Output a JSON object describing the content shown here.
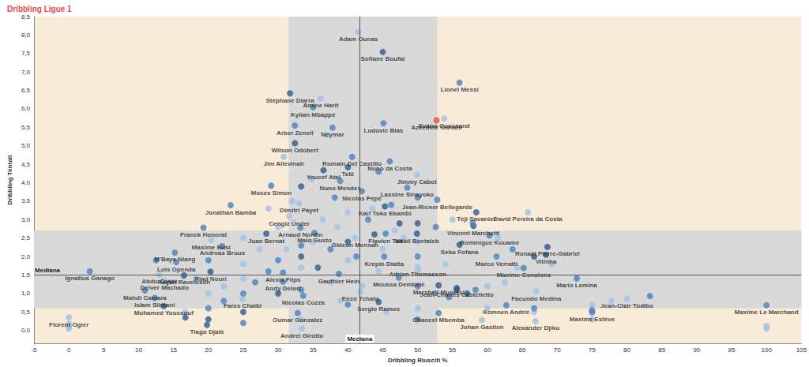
{
  "chart_data": {
    "type": "scatter",
    "title": "Dribbling Ligue 1",
    "x_label": "Dribbling Riusciti %",
    "y_label": "Dribbling Tentati",
    "xlim": [
      -5,
      105
    ],
    "xticks": [
      -5,
      0,
      5,
      10,
      15,
      20,
      25,
      30,
      35,
      40,
      45,
      50,
      55,
      60,
      65,
      70,
      75,
      80,
      85,
      90,
      95,
      100,
      105
    ],
    "ylim": [
      -0.35,
      8.5
    ],
    "yticks": [
      {
        "value": 0,
        "label": "0,0"
      },
      {
        "value": 0.5,
        "label": "0,5"
      },
      {
        "value": 1,
        "label": "1,0"
      },
      {
        "value": 1.5,
        "label": "1,5"
      },
      {
        "value": 2,
        "label": "2,0"
      },
      {
        "value": 2.5,
        "label": "2,5"
      },
      {
        "value": 3,
        "label": "3,0"
      },
      {
        "value": 3.5,
        "label": "3,5"
      },
      {
        "value": 4,
        "label": "4,0"
      },
      {
        "value": 4.5,
        "label": "4,5"
      },
      {
        "value": 5,
        "label": "5,0"
      },
      {
        "value": 5.5,
        "label": "5,5"
      },
      {
        "value": 6,
        "label": "6,0"
      },
      {
        "value": 6.5,
        "label": "6,5"
      },
      {
        "value": 7,
        "label": "7,0"
      },
      {
        "value": 7.5,
        "label": "7,5"
      },
      {
        "value": 8,
        "label": "8,0"
      },
      {
        "value": 8.5,
        "label": "8,5"
      }
    ],
    "grid": false,
    "median_label": "Mediana",
    "median_x": 41.7,
    "median_y": 1.5,
    "x_band": [
      31.5,
      52.8
    ],
    "y_band": [
      0.6,
      2.7
    ],
    "points": [
      {
        "x": 41.5,
        "y": 8.08,
        "label": "Adam Ounas",
        "color": "#9fc2e4"
      },
      {
        "x": 45,
        "y": 7.54,
        "label": "Sofiane Boufal",
        "color": "#2e5b88"
      },
      {
        "x": 56,
        "y": 6.71,
        "label": "Lionel Messi",
        "color": "#4a82bd"
      },
      {
        "x": 31.7,
        "y": 6.42,
        "label": "Stéphane Diarra",
        "color": "#2e5b88"
      },
      {
        "x": 36.1,
        "y": 6.28,
        "label": "Amine Harit",
        "color": "#9fc2e4"
      },
      {
        "x": 53.8,
        "y": 5.74,
        "label": "Evann Guessand",
        "color": "#9fc2e4"
      },
      {
        "x": 52.7,
        "y": 5.69,
        "label": "Azzedine Ounahi",
        "color": "#e8484d"
      },
      {
        "x": 35,
        "y": 6.04,
        "label": "Kylian Mbappé",
        "color": "#4a82bd"
      },
      {
        "x": 45.1,
        "y": 5.61,
        "label": "Ludovic Blas",
        "color": "#4a82bd"
      },
      {
        "x": 32.4,
        "y": 5.55,
        "label": "Arber Zeneli",
        "color": "#4a82bd"
      },
      {
        "x": 37.8,
        "y": 5.49,
        "label": "Neymar",
        "color": "#4a82bd"
      },
      {
        "x": 32.4,
        "y": 5.07,
        "label": "Wilson Odobert",
        "color": "#2e5b88"
      },
      {
        "x": 40.6,
        "y": 4.7,
        "label": "Romain Del Castillo",
        "color": "#4a82bd"
      },
      {
        "x": 46,
        "y": 4.58,
        "label": "Nuno da Costa",
        "color": "#4a82bd"
      },
      {
        "x": 30.8,
        "y": 4.7,
        "label": "Jim Allevinah",
        "color": "#9fc2e4"
      },
      {
        "x": 36.5,
        "y": 4.34,
        "label": "Youcef Atal",
        "color": "#2e5b88"
      },
      {
        "x": 40,
        "y": 4.42,
        "label": "Tetê",
        "color": "#2e5b88"
      },
      {
        "x": 38.9,
        "y": 4.05,
        "label": "Nuno Mendes",
        "color": "#4a82bd"
      },
      {
        "x": 42,
        "y": 3.77,
        "label": "Nicolas Pépé",
        "color": "#4a82bd"
      },
      {
        "x": 49.9,
        "y": 4.22,
        "label": "Jimmy Cabot",
        "color": "#9fc2e4"
      },
      {
        "x": 48.5,
        "y": 3.87,
        "label": "Lassine Sinayoko",
        "color": "#4a82bd"
      },
      {
        "x": 29,
        "y": 3.92,
        "label": "Moses Simon",
        "color": "#4a82bd"
      },
      {
        "x": 45.3,
        "y": 3.36,
        "label": "Karl Toko Ekambi",
        "color": "#2e5b88"
      },
      {
        "x": 52.8,
        "y": 3.54,
        "label": "Jean-Ricner Bellegarde",
        "color": "#4a82bd"
      },
      {
        "x": 58.4,
        "y": 3.2,
        "label": "Téji Savanier",
        "color": "#2e5b88"
      },
      {
        "x": 65.8,
        "y": 3.2,
        "label": "David Pereira da Costa",
        "color": "#9fc2e4"
      },
      {
        "x": 23.2,
        "y": 3.39,
        "label": "Jonathan Bamba",
        "color": "#4a82bd"
      },
      {
        "x": 33,
        "y": 3.44,
        "label": "Dimitri Payet",
        "color": "#9fc2e4"
      },
      {
        "x": 31.6,
        "y": 3.09,
        "label": "Cengiz Ünder",
        "color": "#9fc2e4"
      },
      {
        "x": 33.2,
        "y": 2.78,
        "label": "Arnaud Nordin",
        "color": "#4a82bd"
      },
      {
        "x": 58,
        "y": 2.83,
        "label": "Vincent Marchetti",
        "color": "#2e5b88"
      },
      {
        "x": 19.3,
        "y": 2.78,
        "label": "Franck Honorat",
        "color": "#4a82bd"
      },
      {
        "x": 49.9,
        "y": 2.62,
        "label": "Nabil Bentaleb",
        "color": "#2e5b88"
      },
      {
        "x": 45.4,
        "y": 2.62,
        "label": "Flavien Tait",
        "color": "#4a82bd"
      },
      {
        "x": 35.2,
        "y": 2.64,
        "label": "Malo Gusto",
        "color": "#4a82bd"
      },
      {
        "x": 60.3,
        "y": 2.57,
        "label": "Rominigue Kouamé",
        "color": "#4a82bd"
      },
      {
        "x": 41,
        "y": 2.51,
        "label": "Gideon Mensah",
        "color": "#9fc2e4"
      },
      {
        "x": 20.4,
        "y": 2.45,
        "label": "Maxime Busi",
        "color": "#9fc2e4"
      },
      {
        "x": 22,
        "y": 2.28,
        "label": "Andreas Bruus",
        "color": "#4a82bd"
      },
      {
        "x": 28.3,
        "y": 2.62,
        "label": "Juan Bernat",
        "color": "#2e5b88"
      },
      {
        "x": 68.6,
        "y": 2.26,
        "label": "Ronaël Pierre-Gabriel",
        "color": "#2e5b88"
      },
      {
        "x": 56,
        "y": 2.32,
        "label": "Seko Fofana",
        "color": "#2e5b88"
      },
      {
        "x": 61.3,
        "y": 2.0,
        "label": "Marco Verratti",
        "color": "#4a82bd"
      },
      {
        "x": 15.2,
        "y": 2.11,
        "label": "M'Baye Niang",
        "color": "#4a82bd"
      },
      {
        "x": 45.2,
        "y": 2.0,
        "label": "Krépin Diatta",
        "color": "#4a82bd"
      },
      {
        "x": 68.4,
        "y": 2.05,
        "label": "Vitinha",
        "color": "#2e5b88"
      },
      {
        "x": 50,
        "y": 1.71,
        "label": "Adrien Thomasson",
        "color": "#9fc2e4"
      },
      {
        "x": 15.4,
        "y": 1.85,
        "label": "Loïs Openda",
        "color": "#4a82bd"
      },
      {
        "x": 20.3,
        "y": 1.59,
        "label": "Riad Nouri",
        "color": "#2e5b88"
      },
      {
        "x": 65.2,
        "y": 1.69,
        "label": "Maxime Gonalons",
        "color": "#4a82bd"
      },
      {
        "x": 13,
        "y": 1.51,
        "label": "Abdu Conté",
        "color": "#9fc2e4"
      },
      {
        "x": 30.7,
        "y": 1.57,
        "label": "Alexis Flips",
        "color": "#4a82bd"
      },
      {
        "x": 38.7,
        "y": 1.53,
        "label": "Gauthier Hein",
        "color": "#4a82bd"
      },
      {
        "x": 3,
        "y": 1.6,
        "label": "Ignatius Ganago",
        "color": "#4a82bd"
      },
      {
        "x": 16.5,
        "y": 1.49,
        "label": "Rayan Raveloson",
        "color": "#2e5b88"
      },
      {
        "x": 30.7,
        "y": 1.32,
        "label": "Andy Delort",
        "color": "#4a82bd"
      },
      {
        "x": 53,
        "y": 1.22,
        "label": "Marshall Munetsi",
        "color": "#2e5b88"
      },
      {
        "x": 13.7,
        "y": 1.34,
        "label": "Deiver Machado",
        "color": "#9fc2e4"
      },
      {
        "x": 47.3,
        "y": 1.43,
        "label": "Moussa Dembélé",
        "color": "#4a82bd"
      },
      {
        "x": 41.8,
        "y": 1.04,
        "label": "Enzo Tchato",
        "color": "#9fc2e4"
      },
      {
        "x": 55.6,
        "y": 1.15,
        "label": "Jean-Charles Castelletto",
        "color": "#2e5b88"
      },
      {
        "x": 72.8,
        "y": 1.41,
        "label": "Mario Lemina",
        "color": "#4a82bd"
      },
      {
        "x": 67,
        "y": 1.06,
        "label": "Facundo Medina",
        "color": "#9fc2e4"
      },
      {
        "x": 10.9,
        "y": 1.08,
        "label": "Mahdi Camara",
        "color": "#4a82bd"
      },
      {
        "x": 12.3,
        "y": 0.88,
        "label": "Islam Slimani",
        "color": "#4a82bd"
      },
      {
        "x": 24.9,
        "y": 0.86,
        "label": "Fares Chaibi",
        "color": "#9fc2e4"
      },
      {
        "x": 33.6,
        "y": 0.94,
        "label": "Nicolas Cozza",
        "color": "#4a82bd"
      },
      {
        "x": 44.4,
        "y": 0.77,
        "label": "Sergio Ramos",
        "color": "#2e5b88"
      },
      {
        "x": 62.7,
        "y": 0.68,
        "label": "Komnen Andrić",
        "color": "#4a82bd"
      },
      {
        "x": 13.6,
        "y": 0.66,
        "label": "Mohamed Youssouf",
        "color": "#2e5b88"
      },
      {
        "x": 80,
        "y": 0.86,
        "label": "Jean-Clair Todibo",
        "color": "#9fc2e4"
      },
      {
        "x": 75,
        "y": 0.49,
        "label": "Maxime Estève",
        "color": "#4a82bd"
      },
      {
        "x": 100,
        "y": 0.68,
        "label": "Maxime Le Marchand",
        "color": "#4a82bd"
      },
      {
        "x": 53,
        "y": 0.47,
        "label": "Chancel Mbemba",
        "color": "#4a82bd"
      },
      {
        "x": 59.2,
        "y": 0.28,
        "label": "Johan Gastien",
        "color": "#9fc2e4"
      },
      {
        "x": 66.9,
        "y": 0.25,
        "label": "Alexander Djiku",
        "color": "#9fc2e4"
      },
      {
        "x": 32.8,
        "y": 0.47,
        "label": "Oumar Gonzalez",
        "color": "#4a82bd"
      },
      {
        "x": 33.4,
        "y": 0.05,
        "label": "Andrei Girotto",
        "color": "#9fc2e4"
      },
      {
        "x": 19.8,
        "y": 0.15,
        "label": "Tiago Djaló",
        "color": "#2e5b88"
      },
      {
        "x": 0,
        "y": 0.35,
        "label": "Florent Ogier",
        "color": "#9fc2e4"
      },
      {
        "x": 0,
        "y": 0.1,
        "color": "#9fc2e4"
      },
      {
        "x": 0,
        "y": 0.18,
        "color": "#9fc2e4"
      },
      {
        "x": 0,
        "y": 0.05,
        "color": "#9fc2e4"
      },
      {
        "x": 100,
        "y": 0.05,
        "color": "#9fc2e4"
      },
      {
        "x": 100,
        "y": 0.12,
        "color": "#9fc2e4"
      },
      {
        "x": 75,
        "y": 0.3,
        "color": "#9fc2e4"
      },
      {
        "x": 75,
        "y": 0.7,
        "color": "#9fc2e4"
      },
      {
        "x": 75,
        "y": 0.55,
        "color": "#4a82bd"
      },
      {
        "x": 83.3,
        "y": 0.93,
        "color": "#4a82bd"
      },
      {
        "x": 77.8,
        "y": 0.8,
        "color": "#9fc2e4"
      },
      {
        "x": 66.7,
        "y": 0.5,
        "color": "#9fc2e4"
      },
      {
        "x": 66.7,
        "y": 0.6,
        "color": "#4a82bd"
      },
      {
        "x": 60,
        "y": 0.6,
        "color": "#9fc2e4"
      },
      {
        "x": 58.3,
        "y": 1.1,
        "color": "#4a82bd"
      },
      {
        "x": 57.1,
        "y": 1.0,
        "color": "#2e5b88"
      },
      {
        "x": 55.6,
        "y": 1.1,
        "color": "#2e5b88"
      },
      {
        "x": 54.5,
        "y": 0.9,
        "color": "#4a82bd"
      },
      {
        "x": 60,
        "y": 1.2,
        "color": "#9fc2e4"
      },
      {
        "x": 62.5,
        "y": 1.3,
        "color": "#9fc2e4"
      },
      {
        "x": 64.3,
        "y": 1.7,
        "color": "#9fc2e4"
      },
      {
        "x": 63.6,
        "y": 2.2,
        "color": "#4a82bd"
      },
      {
        "x": 61.5,
        "y": 2.5,
        "color": "#9fc2e4"
      },
      {
        "x": 66.7,
        "y": 2.0,
        "color": "#2e5b88"
      },
      {
        "x": 69.2,
        "y": 1.8,
        "color": "#9fc2e4"
      },
      {
        "x": 57.9,
        "y": 2.9,
        "color": "#4a82bd"
      },
      {
        "x": 55,
        "y": 3.0,
        "color": "#9fc2e4"
      },
      {
        "x": 52.6,
        "y": 2.8,
        "color": "#4a82bd"
      },
      {
        "x": 50,
        "y": 2.4,
        "color": "#9fc2e4"
      },
      {
        "x": 50,
        "y": 2.0,
        "color": "#4a82bd"
      },
      {
        "x": 50,
        "y": 1.6,
        "color": "#9fc2e4"
      },
      {
        "x": 50,
        "y": 1.2,
        "color": "#4a82bd"
      },
      {
        "x": 50,
        "y": 0.6,
        "color": "#9fc2e4"
      },
      {
        "x": 50,
        "y": 0.3,
        "color": "#4a82bd"
      },
      {
        "x": 50,
        "y": 2.9,
        "color": "#2e5b88"
      },
      {
        "x": 50,
        "y": 3.6,
        "color": "#4a82bd"
      },
      {
        "x": 48,
        "y": 2.5,
        "color": "#9fc2e4"
      },
      {
        "x": 47.4,
        "y": 2.9,
        "color": "#2e5b88"
      },
      {
        "x": 46.2,
        "y": 3.4,
        "color": "#4a82bd"
      },
      {
        "x": 45,
        "y": 2.2,
        "color": "#9fc2e4"
      },
      {
        "x": 44.4,
        "y": 1.6,
        "color": "#9fc2e4"
      },
      {
        "x": 43.8,
        "y": 2.6,
        "color": "#2e5b88"
      },
      {
        "x": 42.9,
        "y": 3.0,
        "color": "#4a82bd"
      },
      {
        "x": 42.1,
        "y": 1.2,
        "color": "#9fc2e4"
      },
      {
        "x": 41.2,
        "y": 2.0,
        "color": "#4a82bd"
      },
      {
        "x": 40,
        "y": 1.9,
        "color": "#9fc2e4"
      },
      {
        "x": 40,
        "y": 2.4,
        "color": "#2e5b88"
      },
      {
        "x": 40,
        "y": 3.2,
        "color": "#9fc2e4"
      },
      {
        "x": 40,
        "y": 0.7,
        "color": "#4a82bd"
      },
      {
        "x": 38.5,
        "y": 2.8,
        "color": "#9fc2e4"
      },
      {
        "x": 38.1,
        "y": 3.6,
        "color": "#4a82bd"
      },
      {
        "x": 37.5,
        "y": 1.3,
        "color": "#9fc2e4"
      },
      {
        "x": 37.5,
        "y": 2.2,
        "color": "#4a82bd"
      },
      {
        "x": 36.4,
        "y": 3.0,
        "color": "#9fc2e4"
      },
      {
        "x": 35.7,
        "y": 1.7,
        "color": "#2e5b88"
      },
      {
        "x": 35,
        "y": 2.4,
        "color": "#9fc2e4"
      },
      {
        "x": 34.8,
        "y": 4.1,
        "color": "#9fc2e4"
      },
      {
        "x": 33.3,
        "y": 3.9,
        "color": "#2e5b88"
      },
      {
        "x": 33.3,
        "y": 2.3,
        "color": "#4a82bd"
      },
      {
        "x": 33.3,
        "y": 1.7,
        "color": "#9fc2e4"
      },
      {
        "x": 33.3,
        "y": 1.1,
        "color": "#4a82bd"
      },
      {
        "x": 33.3,
        "y": 0.3,
        "color": "#9fc2e4"
      },
      {
        "x": 33.3,
        "y": 2.0,
        "color": "#2e5b88"
      },
      {
        "x": 32,
        "y": 3.5,
        "color": "#9fc2e4"
      },
      {
        "x": 31.2,
        "y": 2.2,
        "color": "#9fc2e4"
      },
      {
        "x": 30,
        "y": 1.9,
        "color": "#4a82bd"
      },
      {
        "x": 30,
        "y": 2.8,
        "color": "#9fc2e4"
      },
      {
        "x": 30,
        "y": 1.0,
        "color": "#2e5b88"
      },
      {
        "x": 28.6,
        "y": 1.6,
        "color": "#4a82bd"
      },
      {
        "x": 28.6,
        "y": 3.3,
        "color": "#9fc2e4"
      },
      {
        "x": 27.3,
        "y": 2.2,
        "color": "#9fc2e4"
      },
      {
        "x": 26.7,
        "y": 1.3,
        "color": "#4a82bd"
      },
      {
        "x": 25,
        "y": 0.5,
        "color": "#2e5b88"
      },
      {
        "x": 25,
        "y": 1.0,
        "color": "#4a82bd"
      },
      {
        "x": 25,
        "y": 1.4,
        "color": "#9fc2e4"
      },
      {
        "x": 25,
        "y": 1.8,
        "color": "#9fc2e4"
      },
      {
        "x": 25,
        "y": 2.5,
        "color": "#9fc2e4"
      },
      {
        "x": 25,
        "y": 0.2,
        "color": "#4a82bd"
      },
      {
        "x": 22.2,
        "y": 1.2,
        "color": "#9fc2e4"
      },
      {
        "x": 22.2,
        "y": 0.8,
        "color": "#4a82bd"
      },
      {
        "x": 20,
        "y": 0.3,
        "color": "#2e5b88"
      },
      {
        "x": 20,
        "y": 0.6,
        "color": "#4a82bd"
      },
      {
        "x": 20,
        "y": 1.0,
        "color": "#9fc2e4"
      },
      {
        "x": 20,
        "y": 1.9,
        "color": "#4a82bd"
      },
      {
        "x": 18.2,
        "y": 1.4,
        "color": "#9fc2e4"
      },
      {
        "x": 16.7,
        "y": 0.5,
        "color": "#9fc2e4"
      },
      {
        "x": 16.7,
        "y": 0.35,
        "color": "#2e5b88"
      },
      {
        "x": 14.3,
        "y": 1.3,
        "color": "#9fc2e4"
      },
      {
        "x": 12.5,
        "y": 1.9,
        "color": "#4a82bd"
      },
      {
        "x": 44.4,
        "y": 4.3,
        "color": "#4a82bd"
      },
      {
        "x": 43.5,
        "y": 3.3,
        "color": "#9fc2e4"
      },
      {
        "x": 37,
        "y": 5.3,
        "color": "#9fc2e4"
      },
      {
        "x": 46.7,
        "y": 2.7,
        "color": "#9fc2e4"
      },
      {
        "x": 52.4,
        "y": 1.0,
        "color": "#9fc2e4"
      },
      {
        "x": 38.9,
        "y": 0.8,
        "color": "#9fc2e4"
      },
      {
        "x": 45.5,
        "y": 0.5,
        "color": "#9fc2e4"
      },
      {
        "x": 54,
        "y": 1.8,
        "color": "#9fc2e4"
      }
    ]
  }
}
